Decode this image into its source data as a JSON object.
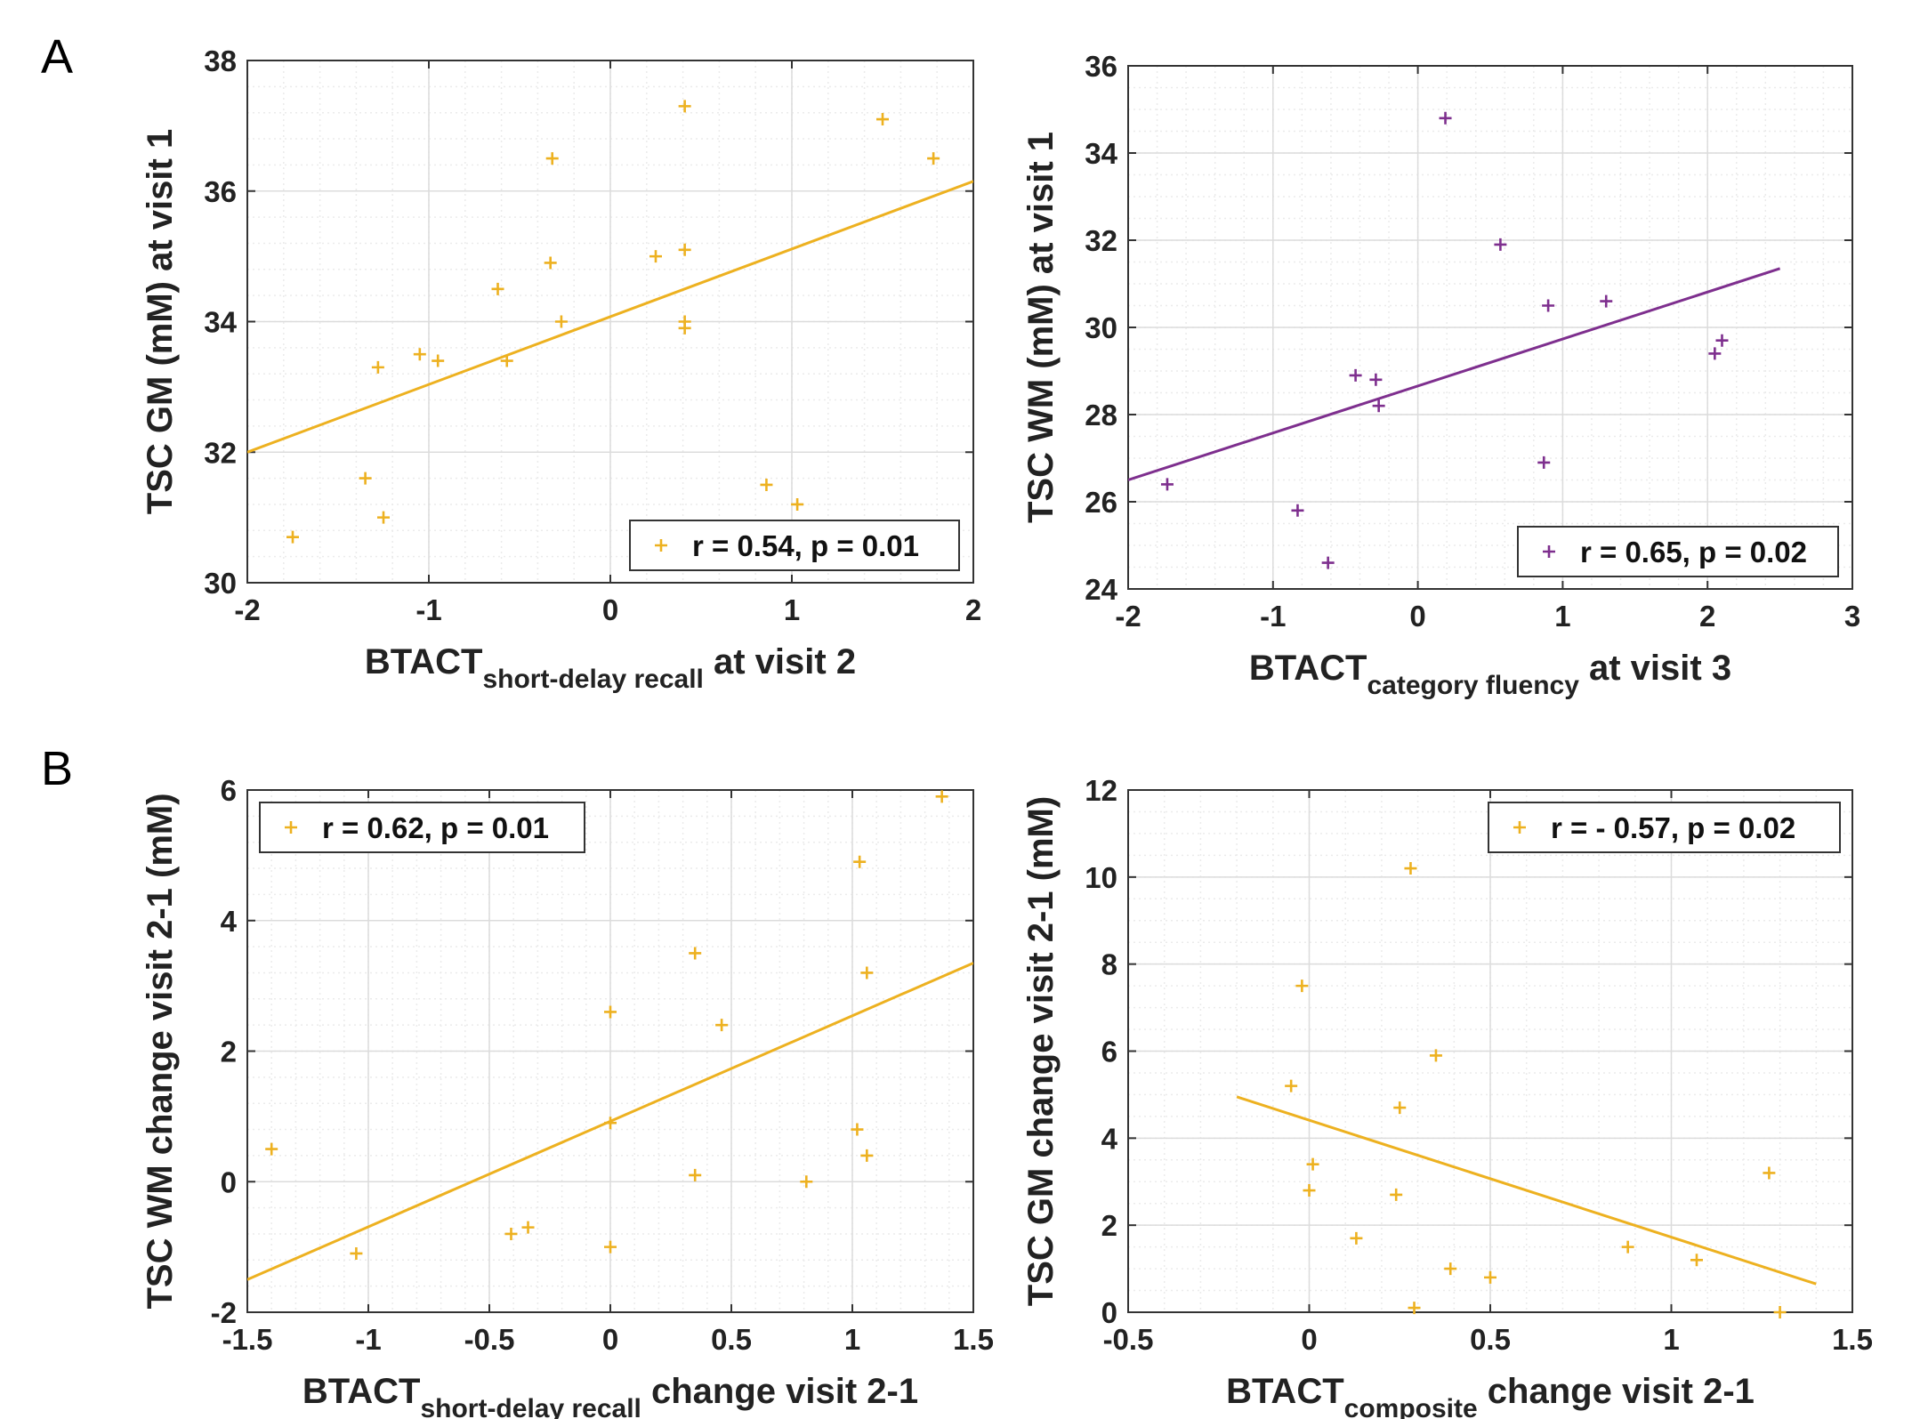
{
  "panel_labels": [
    "A",
    "B"
  ],
  "colors": {
    "orange": "#EDB120",
    "purple": "#7E2F8E"
  },
  "chart_data": [
    {
      "type": "scatter",
      "panel": "A",
      "color": "#EDB120",
      "xlim": [
        -2,
        2
      ],
      "ylim": [
        30,
        38
      ],
      "xticks": [
        -2,
        -1,
        0,
        1,
        2
      ],
      "yticks": [
        30,
        32,
        34,
        36,
        38
      ],
      "xtick_labels": [
        "-2",
        "-1",
        "0",
        "1",
        "2"
      ],
      "ytick_labels": [
        "30",
        "32",
        "34",
        "36",
        "38"
      ],
      "xminor": 0.2,
      "yminor": 0.4,
      "xlabel": {
        "main": "BTACT",
        "sub": "short-delay recall",
        "suffix": " at visit 2"
      },
      "ylabel": "TSC GM (mM) at visit 1",
      "legend": "r = 0.54, p = 0.01",
      "legend_loc": "bottom-right",
      "points": [
        [
          -1.75,
          30.7
        ],
        [
          -1.35,
          31.6
        ],
        [
          -1.25,
          31.0
        ],
        [
          -1.28,
          33.3
        ],
        [
          -1.05,
          33.5
        ],
        [
          -0.95,
          33.4
        ],
        [
          -0.62,
          34.5
        ],
        [
          -0.57,
          33.4
        ],
        [
          -0.32,
          36.5
        ],
        [
          -0.33,
          34.9
        ],
        [
          -0.27,
          34.0
        ],
        [
          0.25,
          35.0
        ],
        [
          0.41,
          37.3
        ],
        [
          0.41,
          35.1
        ],
        [
          0.41,
          34.0
        ],
        [
          0.41,
          33.9
        ],
        [
          0.86,
          31.5
        ],
        [
          1.03,
          31.2
        ],
        [
          1.5,
          37.1
        ],
        [
          1.78,
          36.5
        ]
      ],
      "fit": [
        [
          -2,
          32.0
        ],
        [
          2,
          36.15
        ]
      ]
    },
    {
      "type": "scatter",
      "panel": "A",
      "color": "#7E2F8E",
      "xlim": [
        -2,
        3
      ],
      "ylim": [
        24,
        36
      ],
      "xticks": [
        -2,
        -1,
        0,
        1,
        2,
        3
      ],
      "yticks": [
        24,
        26,
        28,
        30,
        32,
        34,
        36
      ],
      "xtick_labels": [
        "-2",
        "-1",
        "0",
        "1",
        "2",
        "3"
      ],
      "ytick_labels": [
        "24",
        "26",
        "28",
        "30",
        "32",
        "34",
        "36"
      ],
      "xminor": 0.2,
      "yminor": 0.5,
      "xlabel": {
        "main": "BTACT",
        "sub": "category fluency",
        "suffix": " at visit 3"
      },
      "ylabel": "TSC WM (mM) at visit 1",
      "legend": "r = 0.65, p = 0.02",
      "legend_loc": "bottom-right",
      "points": [
        [
          -1.73,
          26.4
        ],
        [
          -0.83,
          25.8
        ],
        [
          -0.62,
          24.6
        ],
        [
          -0.43,
          28.9
        ],
        [
          -0.29,
          28.8
        ],
        [
          -0.27,
          28.2
        ],
        [
          0.19,
          34.8
        ],
        [
          0.57,
          31.9
        ],
        [
          0.87,
          26.9
        ],
        [
          0.9,
          30.5
        ],
        [
          1.3,
          30.6
        ],
        [
          2.05,
          29.4
        ],
        [
          2.1,
          29.7
        ]
      ],
      "fit": [
        [
          -2,
          26.5
        ],
        [
          2.5,
          31.35
        ]
      ]
    },
    {
      "type": "scatter",
      "panel": "B",
      "color": "#EDB120",
      "xlim": [
        -1.5,
        1.5
      ],
      "ylim": [
        -2,
        6
      ],
      "xticks": [
        -1.5,
        -1,
        -0.5,
        0,
        0.5,
        1,
        1.5
      ],
      "yticks": [
        -2,
        0,
        2,
        4,
        6
      ],
      "xtick_labels": [
        "-1.5",
        "-1",
        "-0.5",
        "0",
        "0.5",
        "1",
        "1.5"
      ],
      "ytick_labels": [
        "-2",
        "0",
        "2",
        "4",
        "6"
      ],
      "xminor": 0.1,
      "yminor": 0.4,
      "xlabel": {
        "main": "BTACT",
        "sub": "short-delay recall",
        "suffix": " change visit 2-1"
      },
      "ylabel": "TSC WM change visit 2-1 (mM)",
      "legend": "r = 0.62, p = 0.01",
      "legend_loc": "top-left",
      "points": [
        [
          -1.4,
          0.5
        ],
        [
          -1.05,
          -1.1
        ],
        [
          -0.41,
          -0.8
        ],
        [
          -0.34,
          -0.7
        ],
        [
          0.0,
          2.6
        ],
        [
          0.0,
          0.9
        ],
        [
          0.0,
          -1.0
        ],
        [
          0.35,
          3.5
        ],
        [
          0.35,
          0.1
        ],
        [
          0.46,
          2.4
        ],
        [
          0.81,
          0.0
        ],
        [
          1.02,
          0.8
        ],
        [
          1.03,
          4.9
        ],
        [
          1.06,
          3.2
        ],
        [
          1.06,
          0.4
        ],
        [
          1.37,
          5.9
        ]
      ],
      "fit": [
        [
          -1.5,
          -1.5
        ],
        [
          1.5,
          3.35
        ]
      ]
    },
    {
      "type": "scatter",
      "panel": "B",
      "color": "#EDB120",
      "xlim": [
        -0.5,
        1.5
      ],
      "ylim": [
        0,
        12
      ],
      "xticks": [
        -0.5,
        0,
        0.5,
        1,
        1.5
      ],
      "yticks": [
        0,
        2,
        4,
        6,
        8,
        10,
        12
      ],
      "xtick_labels": [
        "-0.5",
        "0",
        "0.5",
        "1",
        "1.5"
      ],
      "ytick_labels": [
        "0",
        "2",
        "4",
        "6",
        "8",
        "10",
        "12"
      ],
      "xminor": 0.1,
      "yminor": 0.5,
      "xlabel": {
        "main": "BTACT",
        "sub": "composite",
        "suffix": " change visit 2-1"
      },
      "ylabel": "TSC GM change visit 2-1 (mM)",
      "legend": "r = - 0.57, p = 0.02",
      "legend_loc": "top-right",
      "points": [
        [
          -0.05,
          5.2
        ],
        [
          -0.02,
          7.5
        ],
        [
          0.0,
          2.8
        ],
        [
          0.01,
          3.4
        ],
        [
          0.13,
          1.7
        ],
        [
          0.24,
          2.7
        ],
        [
          0.25,
          4.7
        ],
        [
          0.28,
          10.2
        ],
        [
          0.29,
          0.1
        ],
        [
          0.35,
          5.9
        ],
        [
          0.39,
          1.0
        ],
        [
          0.5,
          0.8
        ],
        [
          0.88,
          1.5
        ],
        [
          1.07,
          1.2
        ],
        [
          1.27,
          3.2
        ],
        [
          1.3,
          0.0
        ]
      ],
      "fit": [
        [
          -0.2,
          4.95
        ],
        [
          1.4,
          0.65
        ]
      ]
    }
  ]
}
